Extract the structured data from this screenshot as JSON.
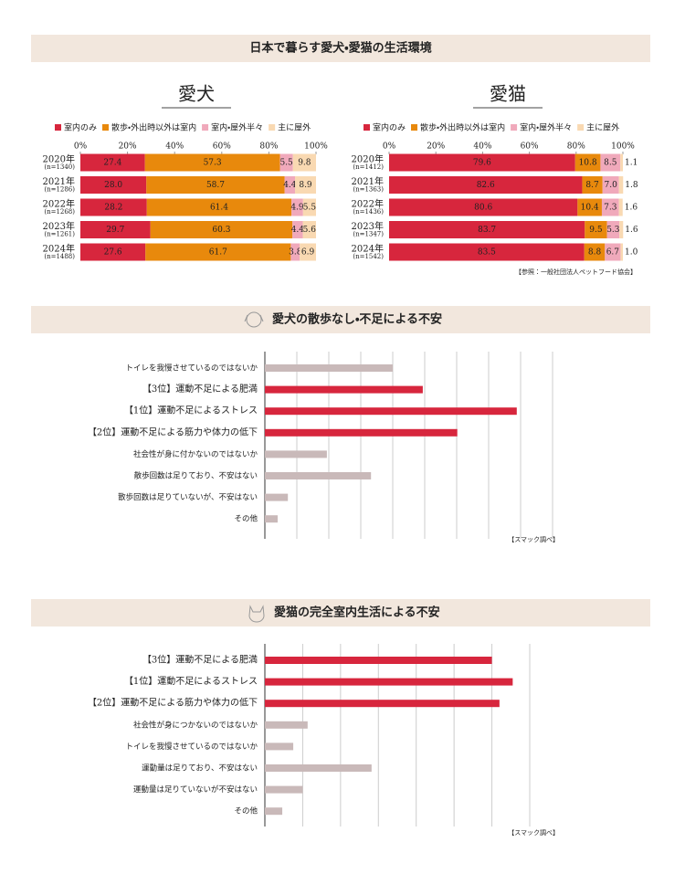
{
  "header": {
    "title": "日本で暮らす愛犬・愛猫の生活環境"
  },
  "sections": [
    {
      "title": "愛犬の散歩なし・不足による不安"
    },
    {
      "title": "愛猫の完全室内生活による不安"
    }
  ],
  "chart_data": [
    {
      "type": "stacked-bar",
      "title": "愛犬",
      "categories": [
        "2020年",
        "2021年",
        "2022年",
        "2023年",
        "2024年"
      ],
      "n_labels": [
        "(n=1340)",
        "(n=1286)",
        "(n=1268)",
        "(n=1261)",
        "(n=1488)"
      ],
      "xlim": [
        0,
        100
      ],
      "xticks": [
        {
          "value": 0,
          "label": "0%"
        },
        {
          "value": 20,
          "label": "20%"
        },
        {
          "value": 40,
          "label": "40%"
        },
        {
          "value": 60,
          "label": "60%"
        },
        {
          "value": 80,
          "label": "80%"
        },
        {
          "value": 100,
          "label": "100%"
        }
      ],
      "series": [
        {
          "name": "室内のみ",
          "color": "#d7263d",
          "values": [
            27.4,
            28.0,
            28.2,
            29.7,
            27.6
          ],
          "value_labels": [
            "27.4",
            "28.0",
            "28.2",
            "29.7",
            "27.6"
          ]
        },
        {
          "name": "散歩・外出時以外は室内",
          "color": "#e8890c",
          "values": [
            57.3,
            58.7,
            61.4,
            60.3,
            61.7
          ],
          "value_labels": [
            "57.3",
            "58.7",
            "61.4",
            "60.3",
            "61.7"
          ]
        },
        {
          "name": "室内・屋外半々",
          "color": "#f0a9bb",
          "values": [
            5.5,
            4.4,
            4.9,
            4.4,
            3.8
          ],
          "value_labels": [
            "5.5",
            "4.4",
            "4.9",
            "4.4",
            "3.8"
          ]
        },
        {
          "name": "主に屋外",
          "color": "#f9d9b2",
          "values": [
            9.8,
            8.9,
            5.5,
            5.6,
            6.9
          ],
          "value_labels": [
            "9.8",
            "8.9",
            "5.5",
            "5.6",
            "6.9"
          ]
        }
      ]
    },
    {
      "type": "stacked-bar",
      "title": "愛猫",
      "categories": [
        "2020年",
        "2021年",
        "2022年",
        "2023年",
        "2024年"
      ],
      "n_labels": [
        "(n=1412)",
        "(n=1363)",
        "(n=1436)",
        "(n=1347)",
        "(n=1542)"
      ],
      "xlim": [
        0,
        100
      ],
      "xticks": [
        {
          "value": 0,
          "label": "0%"
        },
        {
          "value": 20,
          "label": "20%"
        },
        {
          "value": 40,
          "label": "40%"
        },
        {
          "value": 60,
          "label": "60%"
        },
        {
          "value": 80,
          "label": "80%"
        },
        {
          "value": 100,
          "label": "100%"
        }
      ],
      "series": [
        {
          "name": "室内のみ",
          "color": "#d7263d",
          "values": [
            79.6,
            82.6,
            80.6,
            83.7,
            83.5
          ],
          "value_labels": [
            "79.6",
            "82.6",
            "80.6",
            "83.7",
            "83.5"
          ]
        },
        {
          "name": "散歩・外出時以外は室内",
          "color": "#e8890c",
          "values": [
            10.8,
            8.7,
            10.4,
            9.5,
            8.8
          ],
          "value_labels": [
            "10.8",
            "8.7",
            "10.4",
            "9.5",
            "8.8"
          ]
        },
        {
          "name": "室内・屋外半々",
          "color": "#f0a9bb",
          "values": [
            8.5,
            7.0,
            7.3,
            5.3,
            6.7
          ],
          "value_labels": [
            "8.5",
            "7.0",
            "7.3",
            "5.3",
            "6.7"
          ]
        },
        {
          "name": "主に屋外",
          "color": "#f9d9b2",
          "values": [
            1.1,
            1.8,
            1.6,
            1.6,
            1.0
          ],
          "value_labels": [
            "1.1",
            "1.8",
            "1.6",
            "1.6",
            "1.0"
          ]
        }
      ],
      "source": "【参照：一般社団法人ペットフード協会】"
    },
    {
      "type": "bar",
      "categories": [
        "トイレを我慢させているのではないか",
        "【3位】運動不足による肥満",
        "【1位】運動不足によるストレス",
        "【2位】運動不足による筋力や体力の低下",
        "社会性が身に付かないのではないか",
        "散歩回数は足りており、不安はない",
        "散歩回数は足りていないが、不安はない",
        "その他"
      ],
      "values": [
        20,
        24.7,
        39.4,
        30.1,
        9.7,
        16.6,
        3.6,
        2.0
      ],
      "colors": [
        "#c9b9b9",
        "#d7263d",
        "#d7263d",
        "#d7263d",
        "#c9b9b9",
        "#c9b9b9",
        "#c9b9b9",
        "#c9b9b9"
      ],
      "xlim": [
        0,
        45
      ],
      "xticks": [
        0,
        5,
        10,
        15,
        20,
        25,
        30,
        35,
        40,
        45
      ],
      "source": "【スマック調べ】"
    },
    {
      "type": "bar",
      "categories": [
        "【3位】運動不足による肥満",
        "【1位】運動不足によるストレス",
        "【2位】運動不足による筋力や体力の低下",
        "社会性が身につかないのではないか",
        "トイレを我慢させているのではないか",
        "運動量は足りており、不安はない",
        "運動量は足りていないが不安はない",
        "その他"
      ],
      "values": [
        60,
        65.5,
        62,
        11.3,
        7.5,
        28.2,
        10,
        4.6
      ],
      "colors": [
        "#d7263d",
        "#d7263d",
        "#d7263d",
        "#c9b9b9",
        "#c9b9b9",
        "#c9b9b9",
        "#c9b9b9",
        "#c9b9b9"
      ],
      "xlim": [
        0,
        70
      ],
      "xticks": [
        0,
        10,
        20,
        30,
        40,
        50,
        60,
        70
      ],
      "source": "【スマック調べ】"
    }
  ]
}
